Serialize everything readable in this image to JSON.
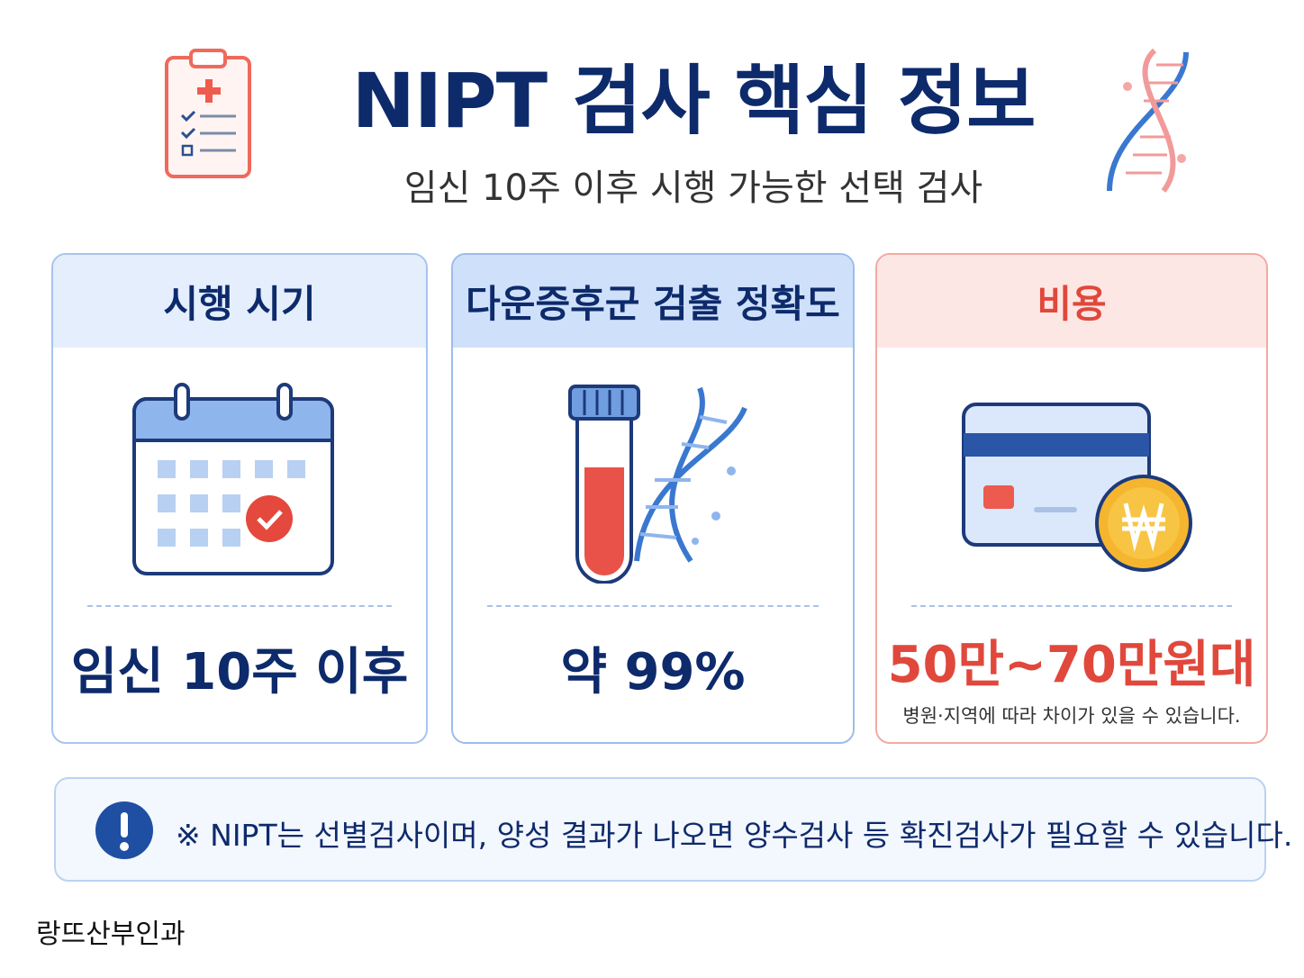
{
  "header": {
    "title": "NIPT 검사 핵심 정보",
    "subtitle": "임신 10주 이후 시행 가능한 선택 검사"
  },
  "cards": [
    {
      "title": "시행 시기",
      "value": "임신 10주 이후"
    },
    {
      "title": "다운증후군 검출 정확도",
      "value": "약 99%"
    },
    {
      "title": "비용",
      "value": "50만~70만원대",
      "note": "병원·지역에 따라 차이가 있을 수 있습니다."
    }
  ],
  "notice": {
    "text": "※ NIPT는 선별검사이며, 양성 결과가 나오면 양수검사 등 확진검사가 필요할 수 있습니다."
  },
  "footer": {
    "brand": "랑뜨산부인과"
  }
}
